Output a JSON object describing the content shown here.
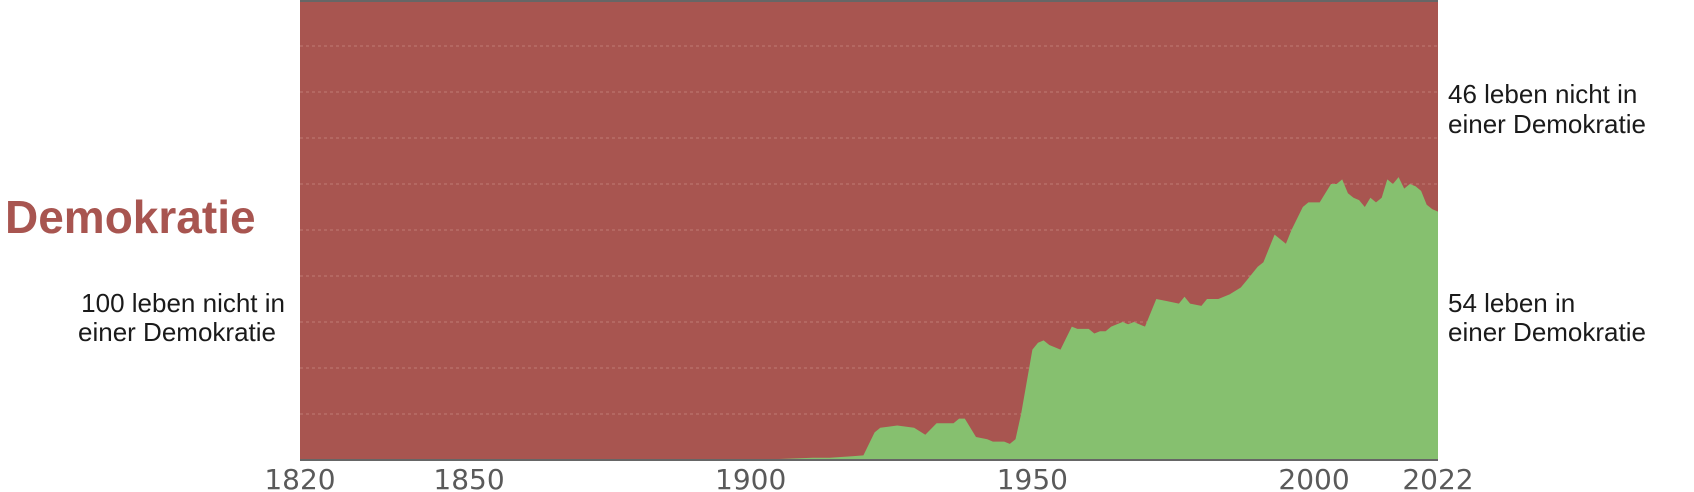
{
  "chart_data": {
    "type": "area",
    "title": "Demokratie",
    "xlabel": "",
    "ylabel": "",
    "xlim": [
      1820,
      2022
    ],
    "ylim": [
      0,
      100
    ],
    "grid": true,
    "colors": {
      "democracy": "#86c06f",
      "non_democracy": "#a85550",
      "title": "#a85550",
      "gridline": "#bf7a74",
      "axis": "#666666",
      "tick_text": "#5a5a5a",
      "label_text": "#1a1a1a"
    },
    "x_ticks": [
      "1820",
      "1850",
      "1900",
      "1950",
      "2000",
      "2022"
    ],
    "labels": {
      "left_line1": "100 leben nicht in",
      "left_line2": "einer Demokratie",
      "right_top_line1": "46 leben nicht in",
      "right_top_line2": "einer Demokratie",
      "right_bottom_line1": "54 leben in",
      "right_bottom_line2": "einer Demokratie"
    },
    "series": [
      {
        "name": "leben in einer Demokratie",
        "x": [
          1820,
          1900,
          1911,
          1914,
          1918,
          1920,
          1922,
          1923,
          1926,
          1929,
          1931,
          1933,
          1936,
          1937,
          1938,
          1940,
          1942,
          1943,
          1945,
          1946,
          1947,
          1948,
          1950,
          1951,
          1952,
          1953,
          1955,
          1957,
          1958,
          1960,
          1961,
          1962,
          1963,
          1964,
          1966,
          1967,
          1968,
          1970,
          1972,
          1974,
          1976,
          1977,
          1978,
          1980,
          1981,
          1983,
          1985,
          1987,
          1988,
          1990,
          1991,
          1992,
          1993,
          1994,
          1995,
          1996,
          1998,
          1999,
          2001,
          2002,
          2003,
          2004,
          2005,
          2006,
          2007,
          2008,
          2009,
          2010,
          2011,
          2012,
          2013,
          2014,
          2015,
          2016,
          2017,
          2018,
          2019,
          2020,
          2021,
          2022
        ],
        "values": [
          0,
          0,
          0.5,
          0.5,
          0.8,
          1,
          6,
          7,
          7.5,
          7,
          5.5,
          8,
          8,
          9,
          9,
          5,
          4.5,
          4,
          4,
          3.5,
          4.5,
          10,
          24,
          25.5,
          26,
          25,
          24,
          29,
          28.5,
          28.5,
          27.5,
          28,
          28,
          29,
          30,
          29.5,
          30,
          29,
          35,
          34.5,
          34,
          35.5,
          34,
          33.5,
          35,
          35,
          36,
          37.5,
          39,
          42,
          43,
          46,
          49,
          48,
          47,
          50,
          55,
          56,
          56,
          58,
          60,
          60,
          61,
          58,
          57,
          56.5,
          55,
          57,
          56,
          57,
          61,
          60,
          61.5,
          59,
          60,
          59.5,
          58.5,
          55.5,
          54.5,
          54
        ]
      },
      {
        "name": "leben nicht in einer Demokratie",
        "values_are_complement": true
      }
    ]
  }
}
